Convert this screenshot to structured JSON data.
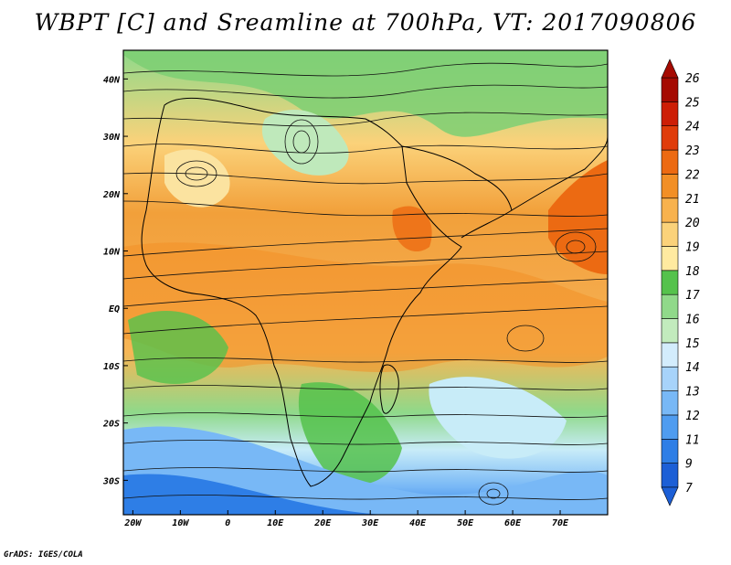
{
  "title": "WBPT [C] and Sreamline at 700hPa, VT: 2017090806",
  "credit": "GrADS: IGES/COLA",
  "map": {
    "x_range": [
      -22,
      80
    ],
    "y_range": [
      -36,
      45
    ],
    "lon_ticks": [
      {
        "value": -20,
        "label": "20W"
      },
      {
        "value": -10,
        "label": "10W"
      },
      {
        "value": 0,
        "label": "0"
      },
      {
        "value": 10,
        "label": "10E"
      },
      {
        "value": 20,
        "label": "20E"
      },
      {
        "value": 30,
        "label": "30E"
      },
      {
        "value": 40,
        "label": "40E"
      },
      {
        "value": 50,
        "label": "50E"
      },
      {
        "value": 60,
        "label": "60E"
      },
      {
        "value": 70,
        "label": "70E"
      }
    ],
    "lat_ticks": [
      {
        "value": 40,
        "label": "40N"
      },
      {
        "value": 30,
        "label": "30N"
      },
      {
        "value": 20,
        "label": "20N"
      },
      {
        "value": 10,
        "label": "10N"
      },
      {
        "value": 0,
        "label": "EQ"
      },
      {
        "value": -10,
        "label": "10S"
      },
      {
        "value": -20,
        "label": "20S"
      },
      {
        "value": -30,
        "label": "30S"
      }
    ]
  },
  "colorbar": {
    "labels": [
      "7",
      "9",
      "11",
      "12",
      "13",
      "14",
      "15",
      "16",
      "17",
      "18",
      "19",
      "20",
      "21",
      "22",
      "23",
      "24",
      "25",
      "26"
    ],
    "colors": [
      "#1c5fd6",
      "#2e7ee6",
      "#4f9cf0",
      "#78b8f6",
      "#a7d3fa",
      "#d3ecfc",
      "#c2ebbd",
      "#90d98a",
      "#55c24c",
      "#ffeaa0",
      "#fbd27a",
      "#f8b24e",
      "#f28f26",
      "#ec6a12",
      "#e03c0a",
      "#cd1e06",
      "#a50a02"
    ]
  }
}
